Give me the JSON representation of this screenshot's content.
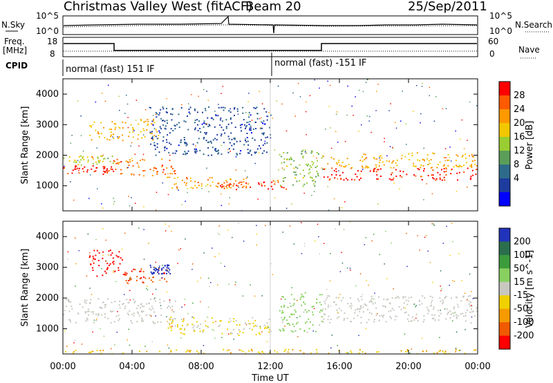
{
  "header": {
    "station_title": "Christmas Valley West (fitACF)",
    "beam_label": "Beam 20",
    "date": "25/Sep/2011"
  },
  "noise_panel": {
    "left_label": "N.Sky",
    "right_label": "N.Search",
    "left_ticks": [
      "10^5",
      "10^0"
    ],
    "right_ticks": [
      "10^5",
      "10^0"
    ]
  },
  "freq_panel": {
    "left_label_1": "Freq.",
    "left_label_2": "[MHz]",
    "left_ticks": [
      "18",
      "8"
    ],
    "right_label": "Nave",
    "right_ticks": [
      "60",
      "0"
    ]
  },
  "cpid": {
    "label": "CPID",
    "segments": [
      {
        "text": "normal (fast) 151 IF",
        "start_h": 0
      },
      {
        "text": "normal (fast) -151 IF",
        "start_h": 12
      }
    ]
  },
  "power_panel": {
    "ylabel": "Slant Range [km]",
    "yticks": [
      "4000",
      "3000",
      "2000",
      "1000"
    ],
    "colorbar_label": "Power [dB]",
    "colorbar_ticks": [
      "28",
      "24",
      "20",
      "16",
      "12",
      "8",
      "4"
    ],
    "colorbar_colors": [
      "#ff0000",
      "#ff5a00",
      "#ff9900",
      "#f2c700",
      "#9acd32",
      "#5a9e5a",
      "#2e6b8a",
      "#1e3c9e",
      "#0000ff"
    ]
  },
  "velocity_panel": {
    "ylabel": "Slant Range [km]",
    "yticks": [
      "4000",
      "3000",
      "2000",
      "1000"
    ],
    "colorbar_label": "Velocity [m s^-1]",
    "colorbar_ticks": [
      "200",
      "100",
      "50",
      "15",
      "-15",
      "-50",
      "-100",
      "-200"
    ],
    "colorbar_colors": [
      "#2233bb",
      "#2a6e4e",
      "#3c9c3c",
      "#88d060",
      "#c8c8c0",
      "#f0d000",
      "#f59b00",
      "#f05a00",
      "#ff0000"
    ]
  },
  "xaxis": {
    "label": "Time UT",
    "ticks": [
      "00:00",
      "04:00",
      "08:00",
      "12:00",
      "16:00",
      "20:00",
      "00:00"
    ]
  },
  "chart_data": [
    {
      "type": "heatmap",
      "title": "Power [dB]",
      "xlabel": "Time UT",
      "ylabel": "Slant Range [km]",
      "xlim": [
        0,
        24
      ],
      "ylim": [
        180,
        4500
      ],
      "clim": [
        0,
        30
      ],
      "features": [
        {
          "t0": 0.0,
          "t1": 2.9,
          "r0": 1400,
          "r1": 1700,
          "value": 28
        },
        {
          "t0": 0.0,
          "t1": 2.9,
          "r0": 1700,
          "r1": 2000,
          "value": 16
        },
        {
          "t0": 2.9,
          "t1": 6.5,
          "r0": 1300,
          "r1": 1900,
          "value": 24
        },
        {
          "t0": 1.5,
          "t1": 5.5,
          "r0": 2500,
          "r1": 3200,
          "value": 20
        },
        {
          "t0": 6.0,
          "t1": 11.0,
          "r0": 900,
          "r1": 1300,
          "value": 22
        },
        {
          "t0": 9.0,
          "t1": 13.0,
          "r0": 900,
          "r1": 1200,
          "value": 26
        },
        {
          "t0": 5.0,
          "t1": 12.0,
          "r0": 2000,
          "r1": 3600,
          "value": 6
        },
        {
          "t0": 12.5,
          "t1": 15.0,
          "r0": 1000,
          "r1": 2200,
          "value": 14
        },
        {
          "t0": 15.0,
          "t1": 24.0,
          "r0": 1200,
          "r1": 1600,
          "value": 28
        },
        {
          "t0": 15.0,
          "t1": 24.0,
          "r0": 1600,
          "r1": 2100,
          "value": 20
        }
      ]
    },
    {
      "type": "heatmap",
      "title": "Velocity [m s^-1]",
      "xlabel": "Time UT",
      "ylabel": "Slant Range [km]",
      "xlim": [
        0,
        24
      ],
      "ylim": [
        180,
        4500
      ],
      "clim": [
        -200,
        200
      ],
      "features": [
        {
          "t0": 0.0,
          "t1": 6.5,
          "r0": 1200,
          "r1": 2000,
          "value": 0
        },
        {
          "t0": 15.0,
          "t1": 24.0,
          "r0": 1200,
          "r1": 2100,
          "value": 0
        },
        {
          "t0": 3.5,
          "t1": 6.0,
          "r0": 2500,
          "r1": 3000,
          "value": -150
        },
        {
          "t0": 5.0,
          "t1": 6.2,
          "r0": 2800,
          "r1": 3100,
          "value": 200
        },
        {
          "t0": 1.5,
          "t1": 3.5,
          "r0": 2700,
          "r1": 3600,
          "value": -200
        },
        {
          "t0": 6.0,
          "t1": 12.0,
          "r0": 800,
          "r1": 1400,
          "value": -30
        },
        {
          "t0": 12.5,
          "t1": 15.0,
          "r0": 900,
          "r1": 2200,
          "value": 40
        },
        {
          "t0": 0.0,
          "t1": 24.0,
          "r0": 180,
          "r1": 350,
          "value": -60
        }
      ]
    }
  ]
}
